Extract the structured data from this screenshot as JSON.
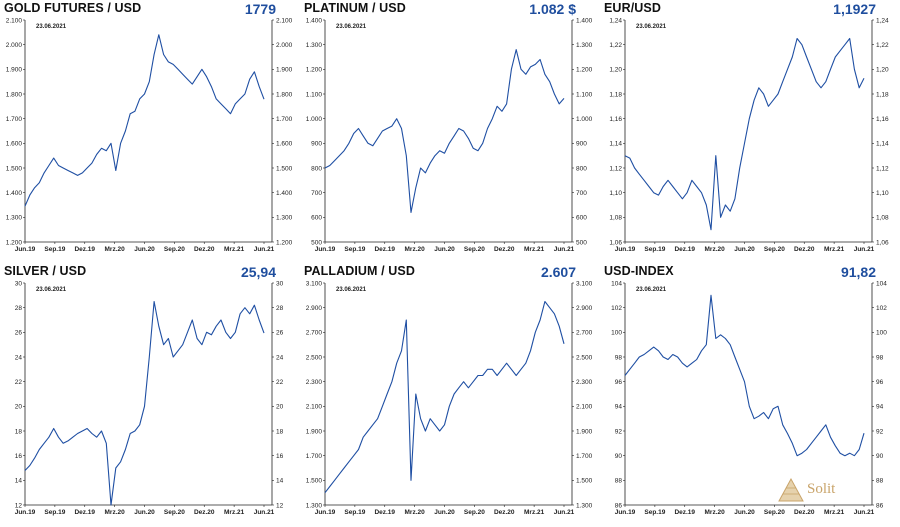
{
  "colors": {
    "line": "#1f4fa3",
    "value": "#1f4e9e",
    "axis": "#222222",
    "logo": "#c9a46a"
  },
  "logo": {
    "text": "Solit",
    "icon": "pyramid-icon"
  },
  "chart_data": [
    {
      "type": "line",
      "title": "GOLD FUTURES / USD",
      "value_label": "1779",
      "date": "23.06.2021",
      "x_ticks": [
        "Jun.19",
        "Sep.19",
        "Dez.19",
        "Mrz.20",
        "Jun.20",
        "Sep.20",
        "Dez.20",
        "Mrz.21",
        "Jun.21"
      ],
      "y_ticks": [
        "1.200",
        "1.300",
        "1.400",
        "1.500",
        "1.600",
        "1.700",
        "1.800",
        "1.900",
        "2.000",
        "2.100"
      ],
      "ylim": [
        1200,
        2100
      ],
      "values": [
        1345,
        1390,
        1420,
        1440,
        1480,
        1510,
        1540,
        1510,
        1500,
        1490,
        1480,
        1470,
        1480,
        1500,
        1520,
        1555,
        1580,
        1570,
        1600,
        1490,
        1600,
        1650,
        1720,
        1730,
        1780,
        1800,
        1850,
        1960,
        2040,
        1960,
        1930,
        1920,
        1900,
        1880,
        1860,
        1840,
        1870,
        1900,
        1870,
        1830,
        1780,
        1760,
        1740,
        1720,
        1760,
        1780,
        1800,
        1860,
        1890,
        1830,
        1779
      ]
    },
    {
      "type": "line",
      "title": "PLATINUM / USD",
      "value_label": "1.082 $",
      "date": "23.06.2021",
      "x_ticks": [
        "Jun.19",
        "Sep.19",
        "Dez.19",
        "Mrz.20",
        "Jun.20",
        "Sep.20",
        "Dez.20",
        "Mrz.21",
        "Jun.21"
      ],
      "y_ticks": [
        "500",
        "600",
        "700",
        "800",
        "900",
        "1.000",
        "1.100",
        "1.200",
        "1.300",
        "1.400"
      ],
      "ylim": [
        500,
        1400
      ],
      "values": [
        800,
        810,
        830,
        850,
        870,
        900,
        940,
        960,
        930,
        900,
        890,
        920,
        950,
        960,
        970,
        1000,
        960,
        850,
        620,
        720,
        800,
        780,
        820,
        850,
        870,
        860,
        900,
        930,
        960,
        950,
        920,
        880,
        870,
        900,
        960,
        1000,
        1050,
        1030,
        1060,
        1200,
        1280,
        1200,
        1180,
        1210,
        1220,
        1240,
        1180,
        1150,
        1100,
        1060,
        1082
      ]
    },
    {
      "type": "line",
      "title": "EUR/USD",
      "value_label": "1,1927",
      "date": "23.06.2021",
      "x_ticks": [
        "Jun.19",
        "Sep.19",
        "Dez.19",
        "Mrz.20",
        "Jun.20",
        "Sep.20",
        "Dez.20",
        "Mrz.21",
        "Jun.21"
      ],
      "y_ticks": [
        "1,06",
        "1,08",
        "1,10",
        "1,12",
        "1,14",
        "1,16",
        "1,18",
        "1,20",
        "1,22",
        "1,24"
      ],
      "ylim": [
        1.06,
        1.24
      ],
      "values": [
        1.13,
        1.128,
        1.12,
        1.115,
        1.11,
        1.105,
        1.1,
        1.098,
        1.105,
        1.11,
        1.105,
        1.1,
        1.095,
        1.1,
        1.11,
        1.105,
        1.1,
        1.09,
        1.07,
        1.13,
        1.08,
        1.09,
        1.085,
        1.095,
        1.12,
        1.14,
        1.16,
        1.175,
        1.185,
        1.18,
        1.17,
        1.175,
        1.18,
        1.19,
        1.2,
        1.21,
        1.225,
        1.22,
        1.21,
        1.2,
        1.19,
        1.185,
        1.19,
        1.2,
        1.21,
        1.215,
        1.22,
        1.225,
        1.2,
        1.185,
        1.1927
      ]
    },
    {
      "type": "line",
      "title": "SILVER / USD",
      "value_label": "25,94",
      "date": "23.06.2021",
      "x_ticks": [
        "Jun.19",
        "Sep.19",
        "Dez.19",
        "Mrz.20",
        "Jun.20",
        "Sep.20",
        "Dez.20",
        "Mrz.21",
        "Jun.21"
      ],
      "y_ticks": [
        "12",
        "14",
        "16",
        "18",
        "20",
        "22",
        "24",
        "26",
        "28",
        "30"
      ],
      "ylim": [
        12,
        30
      ],
      "values": [
        14.8,
        15.2,
        15.8,
        16.5,
        17.0,
        17.5,
        18.2,
        17.5,
        17.0,
        17.2,
        17.5,
        17.8,
        18.0,
        18.2,
        17.8,
        17.5,
        18.0,
        17.0,
        12.0,
        15.0,
        15.5,
        16.5,
        17.8,
        18.0,
        18.5,
        20.0,
        24.0,
        28.5,
        26.5,
        25.0,
        25.5,
        24.0,
        24.5,
        25.0,
        26.0,
        27.0,
        25.5,
        25.0,
        26.0,
        25.8,
        26.5,
        27.0,
        26.0,
        25.5,
        26.0,
        27.5,
        28.0,
        27.5,
        28.2,
        27.0,
        25.94
      ]
    },
    {
      "type": "line",
      "title": "PALLADIUM / USD",
      "value_label": "2.607",
      "date": "23.06.2021",
      "x_ticks": [
        "Jun.19",
        "Sep.19",
        "Dez.19",
        "Mrz.20",
        "Jun.20",
        "Sep.20",
        "Dez.20",
        "Mrz.21",
        "Jun.21"
      ],
      "y_ticks": [
        "1.300",
        "1.500",
        "1.700",
        "1.900",
        "2.100",
        "2.300",
        "2.500",
        "2.700",
        "2.900",
        "3.100"
      ],
      "ylim": [
        1300,
        3100
      ],
      "values": [
        1400,
        1450,
        1500,
        1550,
        1600,
        1650,
        1700,
        1750,
        1850,
        1900,
        1950,
        2000,
        2100,
        2200,
        2300,
        2450,
        2550,
        2800,
        1500,
        2200,
        2000,
        1900,
        2000,
        1950,
        1900,
        1950,
        2100,
        2200,
        2250,
        2300,
        2250,
        2300,
        2350,
        2350,
        2400,
        2400,
        2350,
        2400,
        2450,
        2400,
        2350,
        2400,
        2450,
        2550,
        2700,
        2800,
        2950,
        2900,
        2850,
        2750,
        2607
      ]
    },
    {
      "type": "line",
      "title": "USD-INDEX",
      "value_label": "91,82",
      "date": "23.06.2021",
      "x_ticks": [
        "Jun.19",
        "Sep.19",
        "Dez.19",
        "Mrz.20",
        "Jun.20",
        "Sep.20",
        "Dez.20",
        "Mrz.21",
        "Jun.21"
      ],
      "y_ticks": [
        "86",
        "88",
        "90",
        "92",
        "94",
        "96",
        "98",
        "100",
        "102",
        "104"
      ],
      "ylim": [
        86,
        104
      ],
      "values": [
        96.5,
        97.0,
        97.5,
        98.0,
        98.2,
        98.5,
        98.8,
        98.5,
        98.0,
        97.8,
        98.2,
        98.0,
        97.5,
        97.2,
        97.5,
        97.8,
        98.5,
        99.0,
        103.0,
        99.5,
        99.8,
        99.5,
        99.0,
        98.0,
        97.0,
        96.0,
        94.0,
        93.0,
        93.2,
        93.5,
        93.0,
        93.8,
        94.0,
        92.5,
        91.8,
        91.0,
        90.0,
        90.2,
        90.5,
        91.0,
        91.5,
        92.0,
        92.5,
        91.5,
        90.8,
        90.2,
        90.0,
        90.2,
        90.0,
        90.5,
        91.82
      ]
    }
  ]
}
